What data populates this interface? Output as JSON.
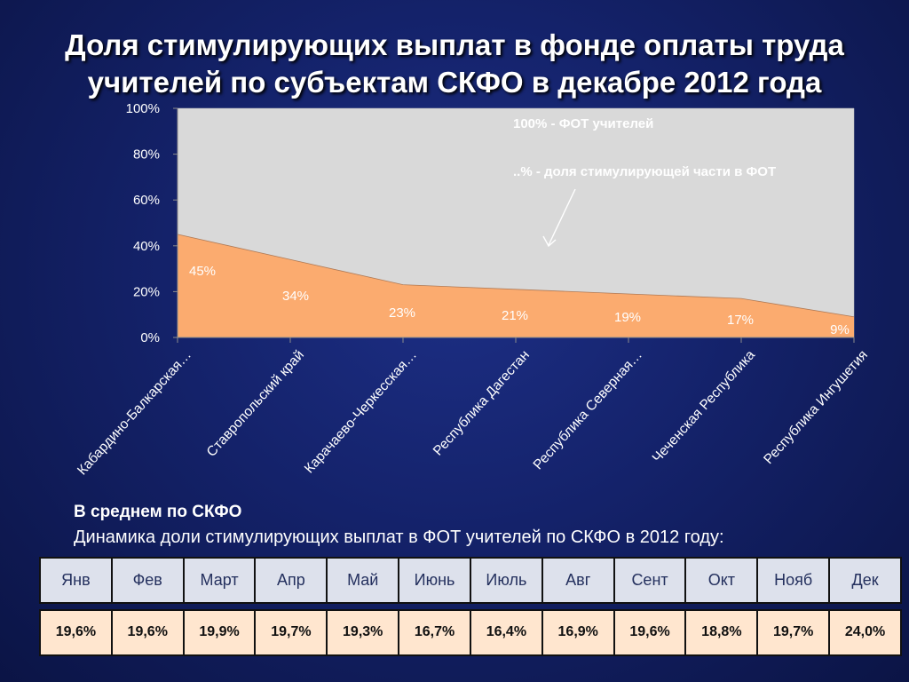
{
  "title_line1": "Доля стимулирующих выплат в фонде оплаты труда",
  "title_line2": "учителей по субъектам СКФО в декабре 2012 года",
  "chart_data": {
    "type": "area",
    "categories": [
      "Кабардино-Балкарская…",
      "Ставропольский край",
      "Карачаево-Черкесская…",
      "Республика Дагестан",
      "Республика Северная…",
      "Чеченская Республика",
      "Республика Ингушетия"
    ],
    "series": [
      {
        "values": [
          45,
          34,
          23,
          21,
          19,
          17,
          9
        ],
        "color": "#fbab6f"
      },
      {
        "values": [
          100,
          100,
          100,
          100,
          100,
          100,
          100
        ],
        "color": "#d9d9d9"
      }
    ],
    "data_labels": [
      "45%",
      "34%",
      "23%",
      "21%",
      "19%",
      "17%",
      "9%"
    ],
    "y_ticks": [
      "0%",
      "20%",
      "40%",
      "60%",
      "80%",
      "100%"
    ],
    "ylim": [
      0,
      100
    ],
    "annotations": [
      "100% - ФОТ учителей",
      "..% - доля стимулирующей части в ФОТ"
    ],
    "grid": false,
    "legend": "none"
  },
  "subtitle_bold": "В среднем по СКФО",
  "subtitle": "Динамика доли стимулирующих выплат в ФОТ учителей по СКФО в 2012 году:",
  "table": {
    "months": [
      "Янв",
      "Фев",
      "Март",
      "Апр",
      "Май",
      "Июнь",
      "Июль",
      "Авг",
      "Сент",
      "Окт",
      "Нояб",
      "Дек"
    ],
    "values": [
      "19,6%",
      "19,6%",
      "19,9%",
      "19,7%",
      "19,3%",
      "16,7%",
      "16,4%",
      "16,9%",
      "19,6%",
      "18,8%",
      "19,7%",
      "24,0%"
    ]
  },
  "colors": {
    "background": "#14226a",
    "accent_area": "#fbab6f",
    "plot_fill": "#d9d9d9"
  }
}
